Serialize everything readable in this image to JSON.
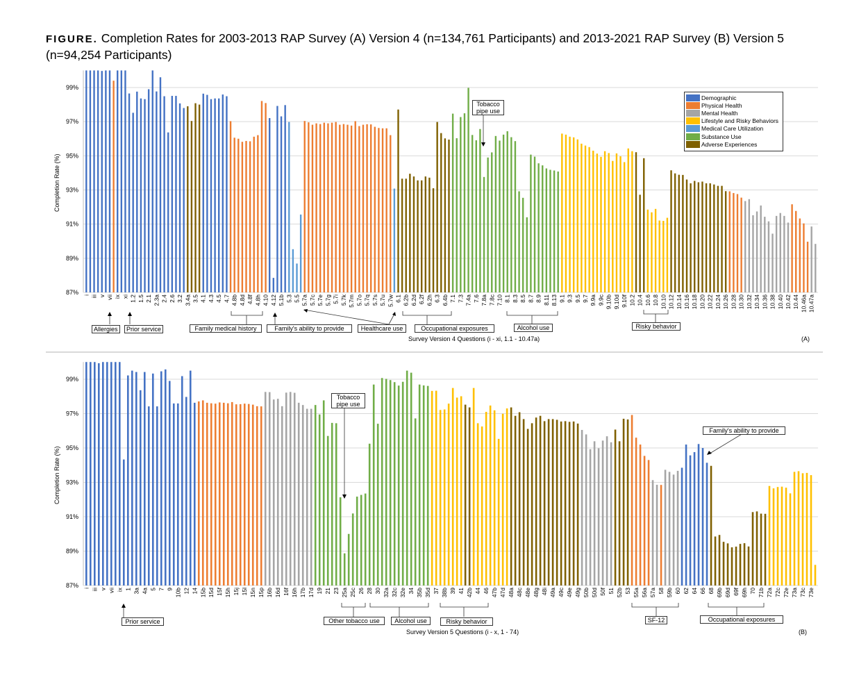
{
  "title": {
    "figure_label": "FIGURE.",
    "text": "Completion Rates for 2003-2013 RAP Survey (A) Version 4 (n=134,761 Participants) and 2013-2021 RAP Survey (B) Version 5 (n=94,254 Participants)"
  },
  "legend": [
    {
      "name": "Demographic",
      "color": "#4472C4"
    },
    {
      "name": "Physical Health",
      "color": "#ED7D31"
    },
    {
      "name": "Mental Health",
      "color": "#A5A5A5"
    },
    {
      "name": "Lifestyle and Risky Behaviors",
      "color": "#FFC000"
    },
    {
      "name": "Medical Care Utilization",
      "color": "#5B9BD5"
    },
    {
      "name": "Substance Use",
      "color": "#70AD47"
    },
    {
      "name": "Adverse Experiences",
      "color": "#7F6000"
    }
  ],
  "annotations_a": {
    "allergies": "Allergies",
    "prior_service": "Prior service",
    "family_medical_history": "Family medical history",
    "family_ability": "Family's ability to provide",
    "healthcare_use": "Healthcare use",
    "occupational_exposures": "Occupational exposures",
    "alcohol_use": "Alcohol use",
    "risky_behavior": "Risky behavior",
    "tobacco_pipe_use": "Tobacco pipe use"
  },
  "annotations_b": {
    "prior_service": "Prior service",
    "tobacco_pipe_use": "Tobacco pipe use",
    "other_tobacco_use": "Other tobacco use",
    "alcohol_use": "Alcohol use",
    "risky_behavior": "Risky behavior",
    "sf12": "SF-12",
    "occupational_exposures": "Occupational exposures",
    "family_ability": "Family's ability to provide"
  },
  "chart_data": [
    {
      "type": "bar",
      "panel_label": "(A)",
      "xlabel": "Survey Version 4 Questions (i - xi, 1.1 - 10.47a)",
      "ylabel": "Completion Rate (%)",
      "ylim": [
        87,
        100
      ],
      "yticks": [
        "87%",
        "89%",
        "91%",
        "93%",
        "95%",
        "97%",
        "99%"
      ],
      "grid": true,
      "legend_position": "top-right",
      "tick_labels": [
        "i",
        "iii",
        "v",
        "vii",
        "ix",
        "xi",
        "1.2",
        "1.5",
        "2.1",
        "2.3a",
        "2.4",
        "2.6",
        "3.2",
        "3.4a",
        "3.5",
        "4.1",
        "4.3",
        "4.5",
        "4.7",
        "4.8b",
        "4.8d",
        "4.8f",
        "4.8h",
        "4.10",
        "4.12",
        "5.1b",
        "5.3",
        "5.5",
        "5.7a",
        "5.7c",
        "5.7e",
        "5.7g",
        "5.7i",
        "5.7k",
        "5.7m",
        "5.7o",
        "5.7q",
        "5.7s",
        "5.7u",
        "5.7w",
        "6.1",
        "6.2b",
        "6.2d",
        "6.2f",
        "6.2h",
        "6.3",
        "6.4b",
        "7.1",
        "7.3",
        "7.4a",
        "7.6",
        "7.8a",
        "7.8c",
        "7.10",
        "8.1",
        "8.3",
        "8.5",
        "8.7",
        "8.9",
        "8.11",
        "8.13",
        "9.1",
        "9.3",
        "9.5",
        "9.7",
        "9.9a",
        "9.9c",
        "9.10b",
        "9.10d",
        "9.10f",
        "10.2",
        "10.4",
        "10.6",
        "10.8",
        "10.10",
        "10.12",
        "10.14",
        "10.16",
        "10.18",
        "10.20",
        "10.22",
        "10.24",
        "10.26",
        "10.28",
        "10.30",
        "10.32",
        "10.34",
        "10.36",
        "10.38",
        "10.40",
        "10.42",
        "10.44",
        "10.46a",
        "10.47a"
      ],
      "category_runs": [
        [
          "Demographic",
          7
        ],
        [
          "Physical Health",
          1
        ],
        [
          "Demographic",
          18
        ],
        [
          "Adverse Experiences",
          4
        ],
        [
          "Demographic",
          7
        ],
        [
          "Physical Health",
          10
        ],
        [
          "Demographic",
          5
        ],
        [
          "Medical Care Utilization",
          4
        ],
        [
          "Physical Health",
          23
        ],
        [
          "Medical Care Utilization",
          1
        ],
        [
          "Adverse Experiences",
          14
        ],
        [
          "Substance Use",
          28
        ],
        [
          "Lifestyle and Risky Behaviors",
          19
        ],
        [
          "Adverse Experiences",
          3
        ],
        [
          "Lifestyle and Risky Behaviors",
          6
        ],
        [
          "Adverse Experiences",
          15
        ],
        [
          "Physical Health",
          4
        ],
        [
          "Mental Health",
          12
        ],
        [
          "Physical Health",
          5
        ],
        [
          "Mental Health",
          2
        ]
      ],
      "values": [
        100,
        100,
        100,
        100,
        99.97,
        100,
        100,
        99.4,
        100,
        100,
        100,
        98.65,
        97.52,
        98.76,
        98.36,
        98.32,
        98.9,
        100,
        98.77,
        99.6,
        98.49,
        96.37,
        98.51,
        98.51,
        98.07,
        97.8,
        97.9,
        97.04,
        98.08,
        98.0,
        98.64,
        98.57,
        98.32,
        98.36,
        98.36,
        98.59,
        98.49,
        97.03,
        96.06,
        96.0,
        95.82,
        95.87,
        95.85,
        96.12,
        96.21,
        98.21,
        98.09,
        97.21,
        87.85,
        97.92,
        97.31,
        97.97,
        96.98,
        89.53,
        88.69,
        91.56,
        97.04,
        96.96,
        96.82,
        96.9,
        96.86,
        96.94,
        96.9,
        96.94,
        96.98,
        96.82,
        96.86,
        96.82,
        96.77,
        97.03,
        96.74,
        96.82,
        96.85,
        96.84,
        96.7,
        96.63,
        96.61,
        96.61,
        96.21,
        93.08,
        97.71,
        93.66,
        93.66,
        93.95,
        93.79,
        93.56,
        93.56,
        93.79,
        93.72,
        93.1,
        96.98,
        96.33,
        96.02,
        95.95,
        97.47,
        96.03,
        97.27,
        97.49,
        98.98,
        96.22,
        95.91,
        96.57,
        93.76,
        94.9,
        95.2,
        96.16,
        95.89,
        96.24,
        96.44,
        96.09,
        95.86,
        92.92,
        92.54,
        91.4,
        95.07,
        94.95,
        94.56,
        94.44,
        94.26,
        94.18,
        94.14,
        94.08,
        96.3,
        96.24,
        96.12,
        96.08,
        95.96,
        95.71,
        95.6,
        95.51,
        95.3,
        95.13,
        94.94,
        95.27,
        95.16,
        94.7,
        95.14,
        94.97,
        94.63,
        95.43,
        95.27,
        95.21,
        92.72,
        94.86,
        91.85,
        91.69,
        91.89,
        91.21,
        91.19,
        91.37,
        94.15,
        93.97,
        93.89,
        93.88,
        93.61,
        93.39,
        93.53,
        93.45,
        93.49,
        93.39,
        93.39,
        93.32,
        93.24,
        93.24,
        92.93,
        92.92,
        92.82,
        92.76,
        92.55,
        92.35,
        92.46,
        91.52,
        91.74,
        92.09,
        91.43,
        91.16,
        90.44,
        91.48,
        91.65,
        91.48,
        91.09,
        92.16,
        91.77,
        91.33,
        91.04,
        89.97,
        90.86,
        89.84
      ]
    },
    {
      "type": "bar",
      "panel_label": "(B)",
      "xlabel": "Survey Version 5 Questions (i - x, 1 - 74)",
      "ylabel": "Completion Rate (%)",
      "ylim": [
        87,
        100
      ],
      "yticks": [
        "87%",
        "89%",
        "91%",
        "93%",
        "95%",
        "97%",
        "99%"
      ],
      "grid": true,
      "tick_labels": [
        "i",
        "iii",
        "v",
        "vii",
        "ix",
        "1",
        "3a",
        "4a",
        "5",
        "7",
        "9",
        "10b",
        "12",
        "14",
        "15b",
        "15d",
        "15f",
        "15h",
        "15j",
        "15l",
        "15n",
        "15p",
        "16b",
        "16d",
        "16f",
        "16h",
        "17b",
        "17d",
        "19",
        "21",
        "23",
        "25a",
        "25c",
        "26",
        "28",
        "30",
        "32a",
        "32c",
        "32e",
        "34",
        "35b",
        "35d",
        "37",
        "38b",
        "39",
        "41",
        "42b",
        "44",
        "46",
        "47b",
        "47d",
        "48a",
        "48c",
        "48e",
        "48g",
        "48i",
        "49a",
        "49c",
        "49e",
        "49g",
        "50b",
        "50d",
        "50f",
        "51",
        "52b",
        "53",
        "55a",
        "56a",
        "57a",
        "58",
        "59b",
        "60",
        "62",
        "64",
        "66",
        "68",
        "69b",
        "69d",
        "69f",
        "69h",
        "70",
        "71b",
        "72a",
        "72c",
        "72e",
        "73a",
        "73c",
        "73e"
      ],
      "category_runs": [
        [
          "Demographic",
          27
        ],
        [
          "Physical Health",
          16
        ],
        [
          "Mental Health",
          12
        ],
        [
          "Substance Use",
          28
        ],
        [
          "Lifestyle and Risky Behaviors",
          8
        ],
        [
          "Adverse Experiences",
          2
        ],
        [
          "Lifestyle and Risky Behaviors",
          9
        ],
        [
          "Adverse Experiences",
          17
        ],
        [
          "Mental Health",
          8
        ],
        [
          "Adverse Experiences",
          4
        ],
        [
          "Physical Health",
          5
        ],
        [
          "Mental Health",
          2
        ],
        [
          "Physical Health",
          1
        ],
        [
          "Mental Health",
          4
        ],
        [
          "Demographic",
          7
        ],
        [
          "Adverse Experiences",
          14
        ],
        [
          "Lifestyle and Risky Behaviors",
          12
        ]
      ],
      "values": [
        100,
        100,
        100,
        99.93,
        100,
        100,
        100,
        100,
        100,
        94.33,
        99.22,
        99.5,
        99.42,
        98.36,
        99.42,
        97.42,
        99.33,
        97.42,
        99.46,
        99.57,
        98.9,
        97.59,
        97.59,
        99.18,
        97.97,
        99.5,
        97.63,
        97.71,
        97.77,
        97.63,
        97.6,
        97.58,
        97.65,
        97.63,
        97.6,
        97.67,
        97.54,
        97.55,
        97.58,
        97.56,
        97.52,
        97.43,
        97.42,
        98.26,
        98.25,
        97.82,
        97.86,
        97.43,
        98.22,
        98.26,
        98.21,
        97.63,
        97.5,
        97.28,
        97.28,
        97.5,
        96.95,
        97.77,
        95.7,
        96.46,
        96.44,
        92.13,
        88.87,
        90.0,
        91.19,
        92.17,
        92.27,
        92.35,
        95.25,
        98.69,
        96.41,
        99.07,
        99.02,
        98.95,
        98.83,
        98.63,
        98.85,
        99.5,
        99.38,
        96.72,
        98.69,
        98.64,
        98.61,
        98.32,
        98.33,
        97.21,
        97.24,
        97.58,
        98.49,
        97.93,
        98.01,
        97.52,
        97.36,
        98.49,
        96.44,
        96.25,
        97.1,
        97.47,
        97.19,
        95.53,
        96.99,
        97.3,
        97.36,
        96.87,
        97.08,
        96.68,
        96.11,
        96.44,
        96.77,
        96.87,
        96.56,
        96.68,
        96.68,
        96.64,
        96.54,
        96.56,
        96.52,
        96.54,
        96.42,
        96.05,
        95.79,
        94.93,
        95.39,
        94.98,
        95.43,
        95.68,
        95.33,
        96.07,
        95.39,
        96.7,
        96.66,
        96.92,
        95.6,
        95.2,
        94.54,
        94.3,
        93.13,
        92.86,
        92.85,
        93.73,
        93.61,
        93.45,
        93.67,
        93.85,
        95.2,
        94.57,
        94.76,
        95.23,
        95.0,
        94.14,
        93.96,
        89.85,
        89.94,
        89.54,
        89.45,
        89.22,
        89.26,
        89.42,
        89.46,
        89.27,
        91.27,
        91.31,
        91.18,
        91.17,
        92.79,
        92.65,
        92.73,
        92.75,
        92.69,
        92.36,
        93.61,
        93.65,
        93.53,
        93.55,
        93.42,
        88.2
      ]
    }
  ]
}
